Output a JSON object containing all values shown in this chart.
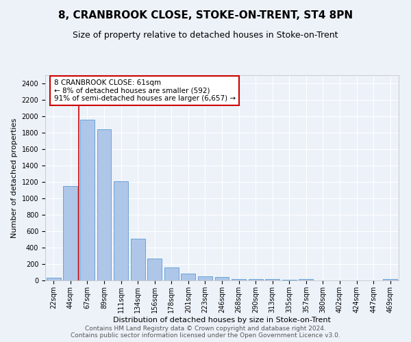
{
  "title": "8, CRANBROOK CLOSE, STOKE-ON-TRENT, ST4 8PN",
  "subtitle": "Size of property relative to detached houses in Stoke-on-Trent",
  "xlabel": "Distribution of detached houses by size in Stoke-on-Trent",
  "ylabel": "Number of detached properties",
  "categories": [
    "22sqm",
    "44sqm",
    "67sqm",
    "89sqm",
    "111sqm",
    "134sqm",
    "156sqm",
    "178sqm",
    "201sqm",
    "223sqm",
    "246sqm",
    "268sqm",
    "290sqm",
    "313sqm",
    "335sqm",
    "357sqm",
    "380sqm",
    "402sqm",
    "424sqm",
    "447sqm",
    "469sqm"
  ],
  "values": [
    30,
    1150,
    1960,
    1840,
    1210,
    510,
    265,
    155,
    80,
    50,
    45,
    20,
    20,
    15,
    5,
    15,
    0,
    0,
    0,
    0,
    15
  ],
  "bar_color": "#aec6e8",
  "bar_edge_color": "#5b9bd5",
  "vline_color": "#cc0000",
  "vline_xindex": 1.5,
  "annotation_text": "8 CRANBROOK CLOSE: 61sqm\n← 8% of detached houses are smaller (592)\n91% of semi-detached houses are larger (6,657) →",
  "annotation_box_color": "#cc0000",
  "ylim": [
    0,
    2500
  ],
  "yticks": [
    0,
    200,
    400,
    600,
    800,
    1000,
    1200,
    1400,
    1600,
    1800,
    2000,
    2200,
    2400
  ],
  "footer1": "Contains HM Land Registry data © Crown copyright and database right 2024.",
  "footer2": "Contains public sector information licensed under the Open Government Licence v3.0.",
  "background_color": "#edf2f9",
  "plot_bg_color": "#edf2f9",
  "title_fontsize": 11,
  "subtitle_fontsize": 9,
  "axis_label_fontsize": 8,
  "tick_fontsize": 7,
  "footer_fontsize": 6.5,
  "annotation_fontsize": 7.5
}
